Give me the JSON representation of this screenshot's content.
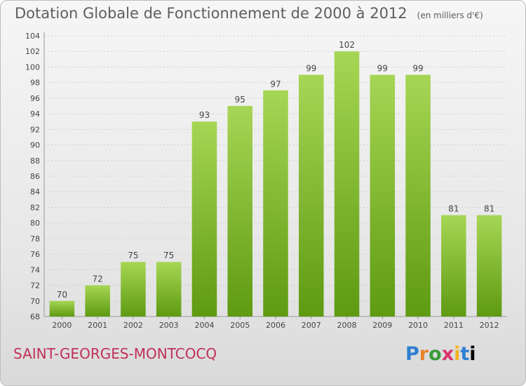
{
  "header": {
    "title": "Dotation Globale de Fonctionnement de 2000 à 2012",
    "unit": "(en milliers d'€)"
  },
  "footer": {
    "commune": "SAINT-GEORGES-MONTCOCQ",
    "logo_letters": [
      "P",
      "r",
      "o",
      "x",
      "i",
      "t",
      "i"
    ]
  },
  "chart_data": {
    "type": "bar",
    "title": "Dotation Globale de Fonctionnement de 2000 à 2012",
    "subtitle": "(en milliers d'€)",
    "xlabel": "",
    "ylabel": "",
    "categories": [
      "2000",
      "2001",
      "2002",
      "2003",
      "2004",
      "2005",
      "2006",
      "2007",
      "2008",
      "2009",
      "2010",
      "2011",
      "2012"
    ],
    "values": [
      70,
      72,
      75,
      75,
      93,
      95,
      97,
      99,
      102,
      99,
      99,
      81,
      81
    ],
    "data_labels": [
      "70",
      "72",
      "75",
      "75",
      "93",
      "95",
      "97",
      "99",
      "102",
      "99",
      "99",
      "81",
      "81"
    ],
    "ylim": [
      68,
      104
    ],
    "yticks": [
      68,
      70,
      72,
      74,
      76,
      78,
      80,
      82,
      84,
      86,
      88,
      90,
      92,
      94,
      96,
      98,
      100,
      102,
      104
    ],
    "grid": true,
    "legend": "none",
    "colors": {
      "bar_top": "#a6d655",
      "bar_bottom": "#5e9a12",
      "grid": "#cfcfcf"
    }
  }
}
